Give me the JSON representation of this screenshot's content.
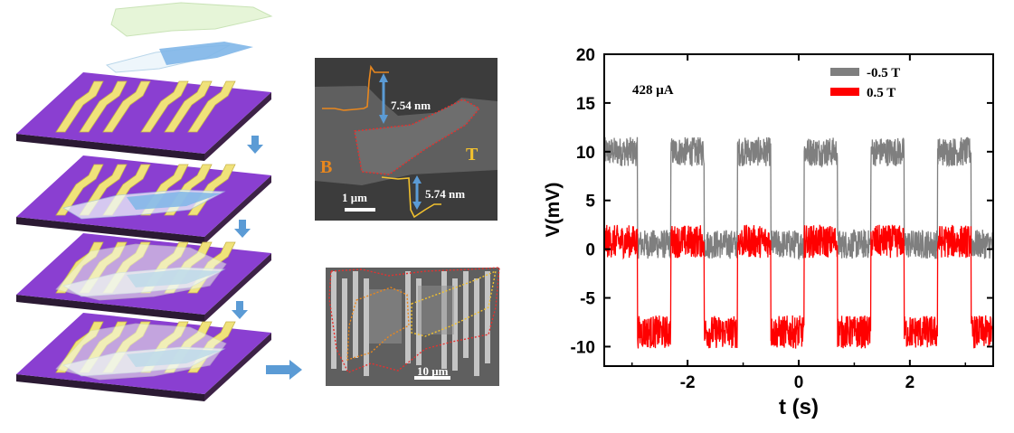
{
  "colors": {
    "substrate": "#8a3fd1",
    "substrate_edge": "#2b1a33",
    "electrode": "#f0e27a",
    "flake_blue": "#7fb6e8",
    "flake_green": "#e6f5d8",
    "flake_white": "#eef6fb",
    "arrow": "#5b9bd5",
    "sem_bg": "#5f5f5f",
    "trace_gray": "#7f7f7f",
    "trace_red": "#ff0000",
    "outline_red": "#e3322f",
    "outline_orange": "#e8871e",
    "outline_yellow": "#f2c12e"
  },
  "sem_top": {
    "step_top_label": "7.54 nm",
    "step_bottom_label": "5.74 nm",
    "label_b": "B",
    "label_t": "T",
    "scale_bar": "1 μm"
  },
  "sem_bottom": {
    "scale_bar": "10 μm"
  },
  "chart_data": {
    "type": "line",
    "annotation": "428 μA",
    "xlabel": "t (s)",
    "ylabel": "V(mV)",
    "xlim": [
      -3.5,
      3.5
    ],
    "ylim": [
      -12,
      20
    ],
    "xticks": [
      -2,
      0,
      2
    ],
    "yticks": [
      -10,
      -5,
      0,
      5,
      10,
      15,
      20
    ],
    "period_s": 1.2,
    "first_high_start_s": -3.5,
    "high_duration_s": 0.6,
    "series": [
      {
        "name": "-0.5 T",
        "color": "#7f7f7f",
        "high_mV": 10,
        "low_mV": 0.5,
        "noise_mV": 1.5
      },
      {
        "name": "0.5 T",
        "color": "#ff0000",
        "high_mV": 0.8,
        "low_mV": -8.5,
        "noise_mV": 1.7
      }
    ]
  }
}
